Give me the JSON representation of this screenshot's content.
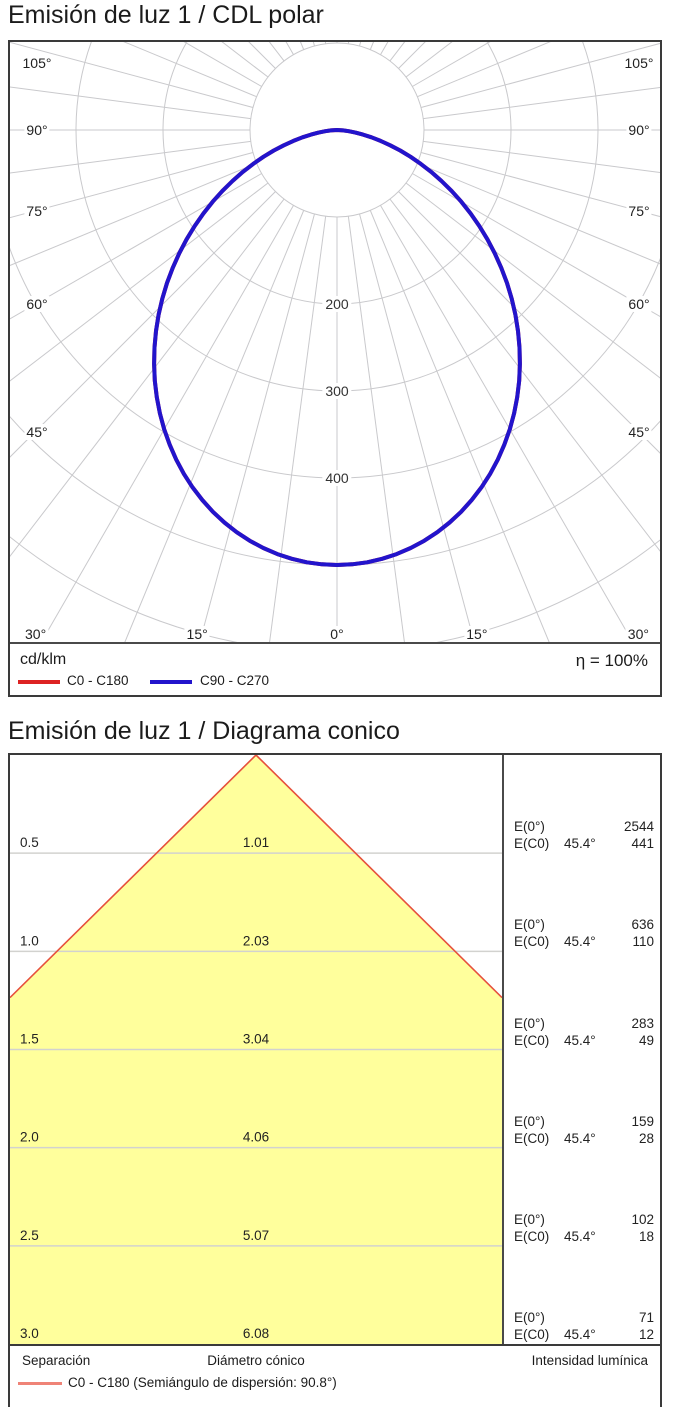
{
  "polar_section": {
    "title": "Emisión de luz 1 / CDL polar",
    "unit_label": "cd/klm",
    "efficiency_label": "η = 100%",
    "legend": [
      {
        "label": "C0 - C180",
        "color": "#dd2222"
      },
      {
        "label": "C90 - C270",
        "color": "#2214cc"
      }
    ]
  },
  "cone_section": {
    "title": "Emisión de luz 1 / Diagrama conico",
    "footer_columns": {
      "separation": "Separación",
      "diameter": "Diámetro cónico",
      "intensity": "Intensidad lumínica"
    },
    "legend_label": "C0 - C180 (Semiángulo de dispersión: 90.8°)",
    "legend_color": "#ef8377"
  },
  "chart_data": [
    {
      "type": "polar",
      "title": "CDL polar",
      "unit": "cd/klm",
      "efficiency_percent": 100,
      "angle_tick_labels_deg": [
        0,
        15,
        30,
        45,
        60,
        75,
        90,
        105
      ],
      "grid_ray_step_deg": 7.5,
      "ring_values": [
        100,
        200,
        300,
        400,
        500,
        600
      ],
      "ring_axis_labels": [
        "200",
        "300",
        "400"
      ],
      "grid_color": "#c9c9cc",
      "series": [
        {
          "name": "C0 - C180",
          "color": "#dd2222",
          "angles_deg": [
            0,
            15,
            30,
            45,
            60,
            75,
            90
          ],
          "values_cd_klm": [
            500,
            473,
            397,
            287,
            165,
            57,
            0
          ]
        },
        {
          "name": "C90 - C270",
          "color": "#2214cc",
          "angles_deg": [
            0,
            15,
            30,
            45,
            60,
            75,
            90
          ],
          "values_cd_klm": [
            500,
            473,
            397,
            287,
            165,
            57,
            0
          ]
        }
      ],
      "model": {
        "max_cd_klm": 500,
        "cos_exponent": 1.6
      }
    },
    {
      "type": "cone-diagram",
      "half_beam_angle_deg": 45.4,
      "full_beam_angle_deg": 90.8,
      "separation_max": 3.0,
      "fill_color": "#ffff9c",
      "edge_color": "#e6503c",
      "gridline_color": "#d2d2cf",
      "e0_label": "E(0°)",
      "ec0_label": "E(C0)",
      "rows": [
        {
          "separation": "0.5",
          "diameter": "1.01",
          "e0": "2544",
          "ec0_angle": "45.4°",
          "ec0": "441"
        },
        {
          "separation": "1.0",
          "diameter": "2.03",
          "e0": "636",
          "ec0_angle": "45.4°",
          "ec0": "110"
        },
        {
          "separation": "1.5",
          "diameter": "3.04",
          "e0": "283",
          "ec0_angle": "45.4°",
          "ec0": "49"
        },
        {
          "separation": "2.0",
          "diameter": "4.06",
          "e0": "159",
          "ec0_angle": "45.4°",
          "ec0": "28"
        },
        {
          "separation": "2.5",
          "diameter": "5.07",
          "e0": "102",
          "ec0_angle": "45.4°",
          "ec0": "18"
        },
        {
          "separation": "3.0",
          "diameter": "6.08",
          "e0": "71",
          "ec0_angle": "45.4°",
          "ec0": "12"
        }
      ]
    }
  ]
}
